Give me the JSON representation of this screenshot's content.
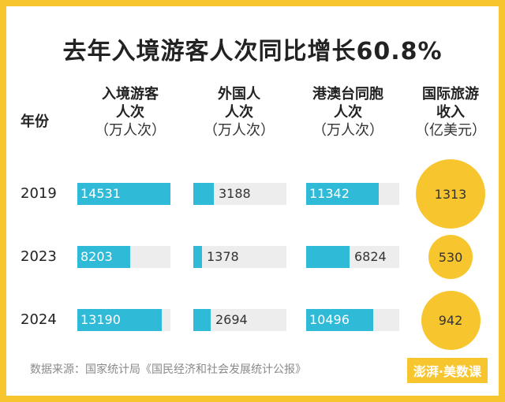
{
  "title": "去年入境游客人次同比增长60.8%",
  "chart_data": {
    "type": "bar",
    "categories": [
      "2019",
      "2023",
      "2024"
    ],
    "row_header": "年份",
    "series": [
      {
        "name": "入境游客人次",
        "unit": "（万人次）",
        "values": [
          14531,
          8203,
          13190
        ],
        "color": "#2fbad8"
      },
      {
        "name": "外国人人次",
        "unit": "（万人次）",
        "values": [
          3188,
          1378,
          2694
        ],
        "color": "#2fbad8"
      },
      {
        "name": "港澳台同胞人次",
        "unit": "（万人次）",
        "values": [
          11342,
          6824,
          10496
        ],
        "color": "#2fbad8"
      },
      {
        "name": "国际旅游收入",
        "unit": "（亿美元）",
        "values": [
          1313,
          530,
          942
        ],
        "color": "#f7c62f",
        "shape": "circle"
      }
    ],
    "scale_max": [
      14531,
      14531,
      14531,
      1313
    ]
  },
  "headers": [
    {
      "l1": "入境游客",
      "l2": "人次",
      "unit": "（万人次）"
    },
    {
      "l1": "外国人",
      "l2": "人次",
      "unit": "（万人次）"
    },
    {
      "l1": "港澳台同胞",
      "l2": "人次",
      "unit": "（万人次）"
    },
    {
      "l1": "国际旅游",
      "l2": "收入",
      "unit": "（亿美元）"
    }
  ],
  "source": "数据来源：国家统计局《国民经济和社会发展统计公报》",
  "brand": "澎湃·美数课"
}
